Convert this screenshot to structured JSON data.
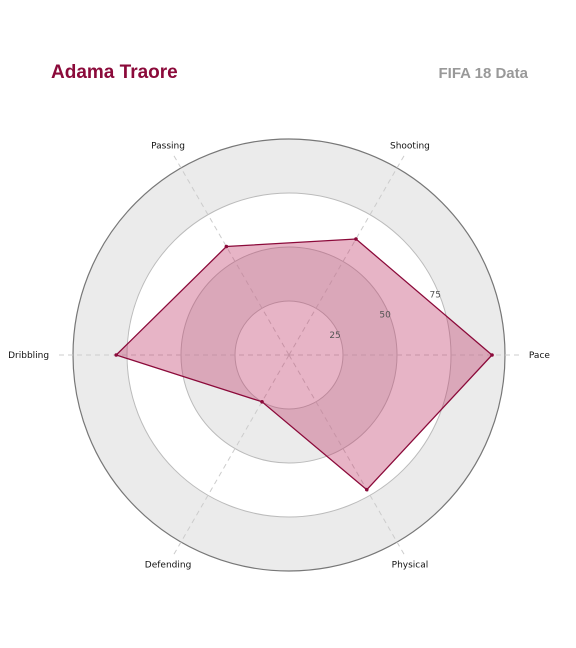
{
  "header": {
    "title": "Adama Traore",
    "subtitle": "FIFA 18 Data"
  },
  "colors": {
    "title": "#8b0a3a",
    "subtitle": "#999999",
    "fill": "#c0396a",
    "line": "#8b0a3a",
    "band": "#ebebeb",
    "grid": "#bbbbbb"
  },
  "chart_data": {
    "type": "radar",
    "title": "Adama Traore",
    "subtitle": "FIFA 18 Data",
    "categories": [
      "Pace",
      "Shooting",
      "Passing",
      "Dribbling",
      "Defending",
      "Physical"
    ],
    "values": [
      94,
      62,
      58,
      80,
      25,
      72
    ],
    "rlim": [
      0,
      100
    ],
    "ticks": [
      25,
      50,
      75
    ],
    "tick_labels": [
      "25",
      "50",
      "75"
    ],
    "grid": true,
    "legend": "none"
  }
}
